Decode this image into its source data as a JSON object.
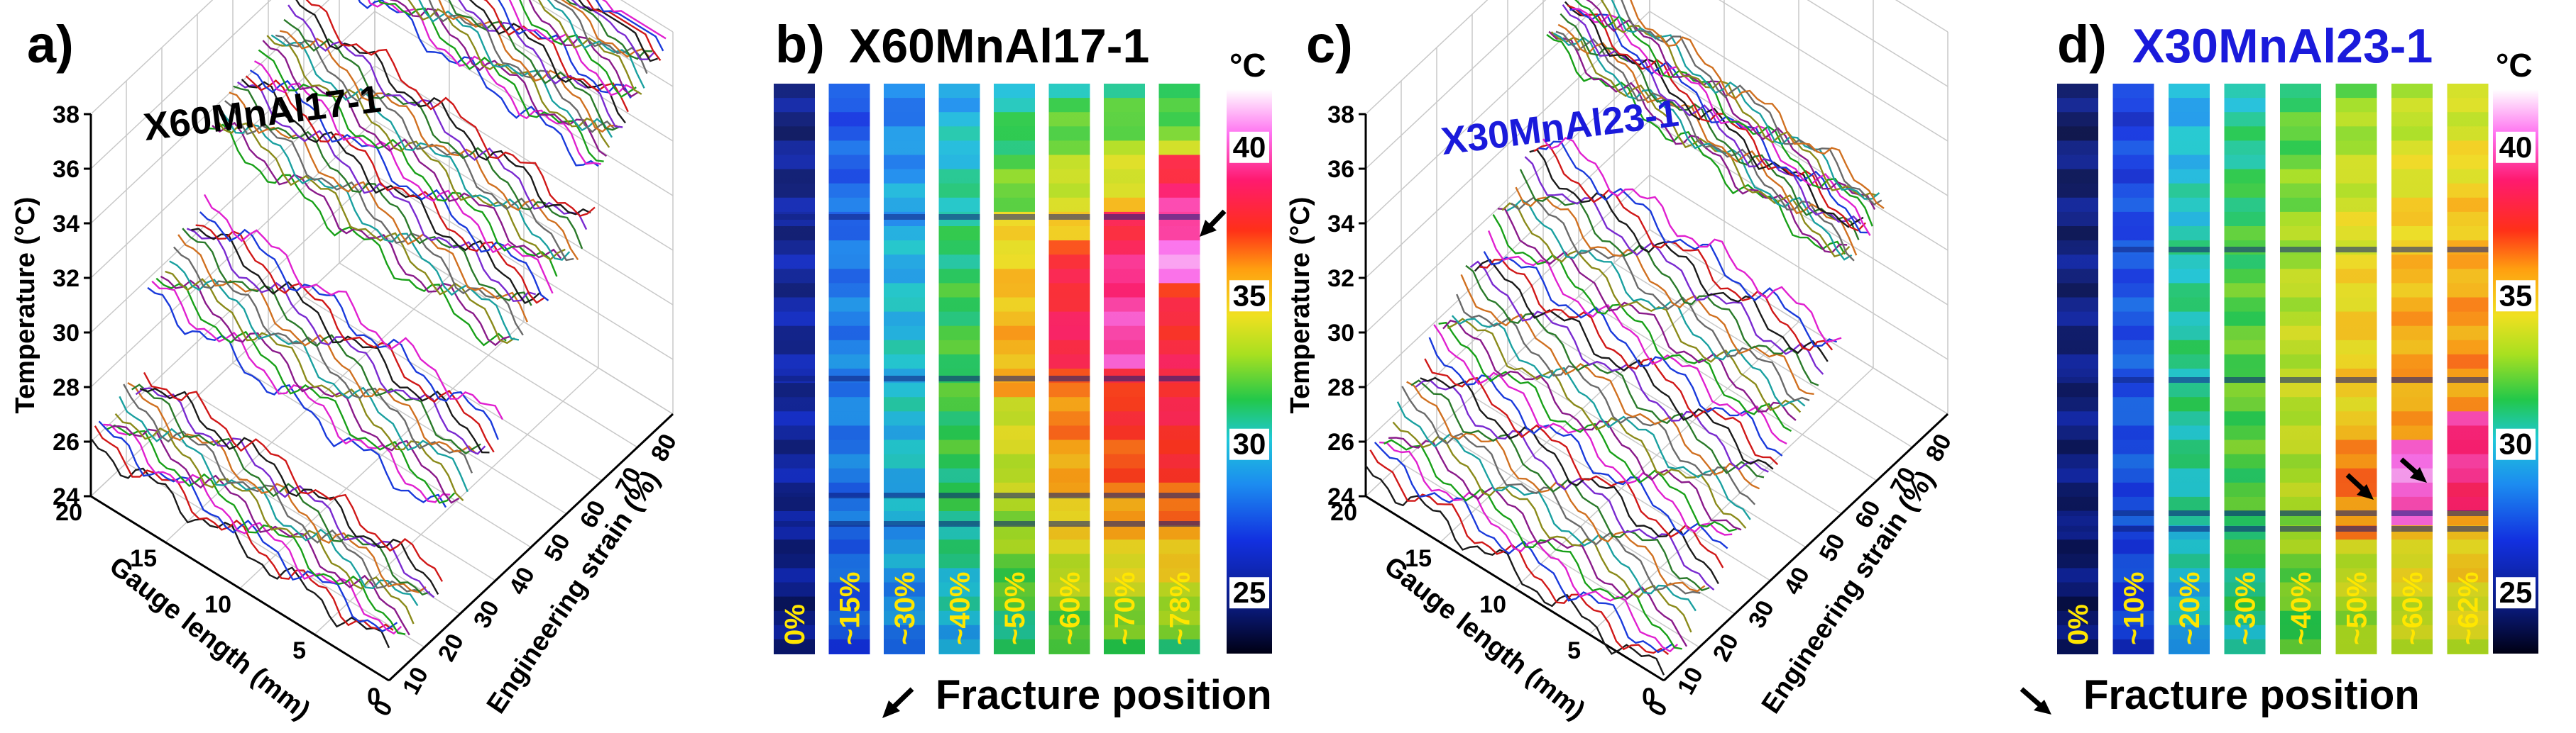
{
  "panels": [
    {
      "id": "a",
      "label": "a)",
      "sample": "X60MnAl17-1"
    },
    {
      "id": "b",
      "label": "b)",
      "sample": "X60MnAl17-1"
    },
    {
      "id": "c",
      "label": "c)",
      "sample": "X30MnAl23-1"
    },
    {
      "id": "d",
      "label": "d)",
      "sample": "X30MnAl23-1"
    }
  ],
  "colors": {
    "sample_a_title": "#000000",
    "sample_c_title": "#1a1adb",
    "strip_label": "#ffe600",
    "arrow": "#000000"
  },
  "chart_data": [
    {
      "id": "a",
      "type": "line",
      "title": "X60MnAl17-1",
      "zlabel": "Temperature (°C)",
      "xlabel": "Gauge length (mm)",
      "ylabel": "Engineering strain (%)",
      "z_ticks": [
        "24",
        "26",
        "28",
        "30",
        "32",
        "34",
        "36",
        "38"
      ],
      "x_ticks": [
        "0",
        "5",
        "10",
        "15",
        "20"
      ],
      "y_ticks": [
        "0",
        "10",
        "20",
        "30",
        "40",
        "50",
        "60",
        "70",
        "80"
      ],
      "zlim": [
        24,
        38
      ],
      "xlim": [
        0,
        20
      ],
      "ylim": [
        0,
        80
      ],
      "series_groups": [
        {
          "strain_range": [
            0,
            15
          ],
          "count": 14,
          "temp_start": 26.0,
          "temp_slope": 0.06
        },
        {
          "strain_range": [
            16,
            32
          ],
          "count": 14,
          "temp_start": 29.5,
          "temp_slope": 0.11
        },
        {
          "strain_range": [
            33,
            58
          ],
          "count": 22,
          "temp_start": 33.5,
          "temp_slope": 0.08
        },
        {
          "strain_range": [
            59,
            78
          ],
          "count": 26,
          "temp_start": 37.0,
          "temp_slope": 0.1
        }
      ]
    },
    {
      "id": "b",
      "type": "heatmap",
      "title": "X60MnAl17-1",
      "strips": [
        "0%",
        "~15%",
        "~30%",
        "~40%",
        "~50%",
        "~60%",
        "~70%",
        "~78%"
      ],
      "colorbar_unit": "°C",
      "colorbar_ticks": [
        "40",
        "35",
        "30",
        "25"
      ],
      "colorbar_range": [
        23,
        42
      ],
      "legend": "Fracture position"
    },
    {
      "id": "c",
      "type": "line",
      "title": "X30MnAl23-1",
      "zlabel": "Temperature (°C)",
      "xlabel": "Gauge length (mm)",
      "ylabel": "Engineering strain (%)",
      "z_ticks": [
        "24",
        "26",
        "28",
        "30",
        "32",
        "34",
        "36",
        "38"
      ],
      "x_ticks": [
        "0",
        "5",
        "10",
        "15",
        "20"
      ],
      "y_ticks": [
        "0",
        "10",
        "20",
        "30",
        "40",
        "50",
        "60",
        "70",
        "80"
      ],
      "zlim": [
        24,
        38
      ],
      "xlim": [
        0,
        20
      ],
      "ylim": [
        0,
        80
      ],
      "series_groups": [
        {
          "strain_range": [
            0,
            50
          ],
          "count": 40,
          "temp_start": 25.0,
          "temp_slope": 0.16
        },
        {
          "strain_range": [
            51,
            62
          ],
          "count": 18,
          "temp_start": 34.5,
          "temp_slope": 0.06
        }
      ]
    },
    {
      "id": "d",
      "type": "heatmap",
      "title": "X30MnAl23-1",
      "strips": [
        "0%",
        "~10%",
        "~20%",
        "~30%",
        "~40%",
        "~50%",
        "~60%",
        "~62%"
      ],
      "colorbar_unit": "°C",
      "colorbar_ticks": [
        "40",
        "35",
        "30",
        "25"
      ],
      "colorbar_range": [
        23,
        42
      ],
      "legend": "Fracture position"
    }
  ]
}
